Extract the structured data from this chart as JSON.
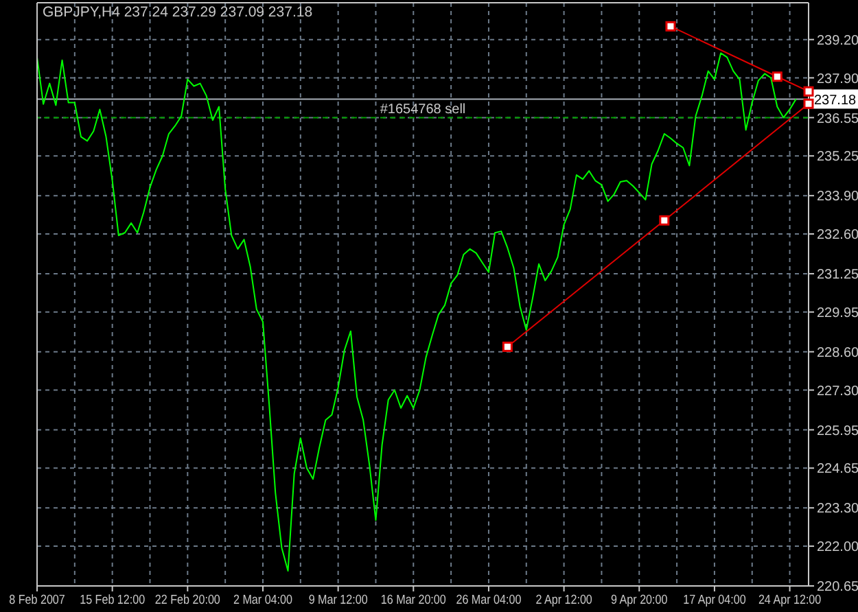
{
  "chart_data": {
    "type": "line",
    "title": "GBPJPY,H4 237.24 237.29 237.09 237.18",
    "categories": [
      "8 Feb 2007",
      null,
      null,
      null,
      null,
      null,
      null,
      null,
      null,
      null,
      null,
      null,
      "15 Feb 12:00",
      null,
      null,
      null,
      null,
      null,
      null,
      null,
      null,
      null,
      null,
      null,
      "22 Feb 20:00",
      null,
      null,
      null,
      null,
      null,
      null,
      null,
      null,
      null,
      null,
      null,
      "2 Mar 04:00",
      null,
      null,
      null,
      null,
      null,
      null,
      null,
      null,
      null,
      null,
      null,
      "9 Mar 12:00",
      null,
      null,
      null,
      null,
      null,
      null,
      null,
      null,
      null,
      null,
      null,
      "16 Mar 20:00",
      null,
      null,
      null,
      null,
      null,
      null,
      null,
      null,
      null,
      null,
      null,
      "26 Mar 04:00",
      null,
      null,
      null,
      null,
      null,
      null,
      null,
      null,
      null,
      null,
      null,
      "2 Apr 12:00",
      null,
      null,
      null,
      null,
      null,
      null,
      null,
      null,
      null,
      null,
      null,
      "9 Apr 20:00",
      null,
      null,
      null,
      null,
      null,
      null,
      null,
      null,
      null,
      null,
      null,
      "17 Apr 04:00",
      null,
      null,
      null,
      null,
      null,
      null,
      null,
      null,
      null,
      null,
      null,
      "24 Apr 12:00",
      null,
      null,
      null
    ],
    "series": [
      {
        "color": "#00ff00",
        "values": [
          238.6,
          237.01,
          237.71,
          236.97,
          238.5,
          237.06,
          237.06,
          235.9,
          235.76,
          236.09,
          236.83,
          235.9,
          234.41,
          232.55,
          232.64,
          232.97,
          232.64,
          233.34,
          234.18,
          234.78,
          235.25,
          236.0,
          236.27,
          236.6,
          237.85,
          237.62,
          237.71,
          237.29,
          236.46,
          236.92,
          234.13,
          232.55,
          232.09,
          232.41,
          231.48,
          230.04,
          229.62,
          226.83,
          223.81,
          221.95,
          221.16,
          224.46,
          225.67,
          224.65,
          224.28,
          225.35,
          226.28,
          226.46,
          227.39,
          228.65,
          229.3,
          227.07,
          226.28,
          224.74,
          222.88,
          225.44,
          226.97,
          227.3,
          226.69,
          227.11,
          226.69,
          227.3,
          228.41,
          229.16,
          229.86,
          230.18,
          230.92,
          231.2,
          231.9,
          232.09,
          231.95,
          231.62,
          231.3,
          232.64,
          232.69,
          232.13,
          231.44,
          230.13,
          229.34,
          230.41,
          231.58,
          231.02,
          231.34,
          231.81,
          232.92,
          233.44,
          234.6,
          234.46,
          234.74,
          234.41,
          234.27,
          233.71,
          233.95,
          234.37,
          234.41,
          234.23,
          234.0,
          233.76,
          234.97,
          235.43,
          236.0,
          235.85,
          235.67,
          235.53,
          234.92,
          236.6,
          237.29,
          238.13,
          237.85,
          238.74,
          238.6,
          238.13,
          237.85,
          236.13,
          237.06,
          237.81,
          238.04,
          237.9,
          236.92,
          236.55,
          236.83,
          237.18,
          null,
          null
        ]
      },
      {
        "type": "line",
        "color": "#e00000",
        "marker": "square",
        "values": [
          null,
          null,
          null,
          null,
          null,
          null,
          null,
          null,
          null,
          null,
          null,
          null,
          null,
          null,
          null,
          null,
          null,
          null,
          null,
          null,
          null,
          null,
          null,
          null,
          null,
          null,
          null,
          null,
          null,
          null,
          null,
          null,
          null,
          null,
          null,
          null,
          null,
          null,
          null,
          null,
          null,
          null,
          null,
          null,
          null,
          null,
          null,
          null,
          null,
          null,
          null,
          null,
          null,
          null,
          null,
          null,
          null,
          null,
          null,
          null,
          null,
          null,
          null,
          null,
          null,
          null,
          null,
          null,
          null,
          null,
          null,
          null,
          null,
          null,
          null,
          null,
          null,
          null,
          null,
          null,
          null,
          null,
          null,
          null,
          null,
          null,
          null,
          null,
          null,
          null,
          null,
          null,
          null,
          null,
          null,
          null,
          null,
          null,
          null,
          null,
          null,
          239.65,
          null,
          null,
          null,
          null,
          null,
          null,
          null,
          null,
          null,
          null,
          null,
          null,
          null,
          null,
          null,
          null,
          237.94,
          null,
          null,
          null,
          null,
          237.44
        ]
      },
      {
        "type": "line",
        "color": "#e00000",
        "marker": "square",
        "values": [
          null,
          null,
          null,
          null,
          null,
          null,
          null,
          null,
          null,
          null,
          null,
          null,
          null,
          null,
          null,
          null,
          null,
          null,
          null,
          null,
          null,
          null,
          null,
          null,
          null,
          null,
          null,
          null,
          null,
          null,
          null,
          null,
          null,
          null,
          null,
          null,
          null,
          null,
          null,
          null,
          null,
          null,
          null,
          null,
          null,
          null,
          null,
          null,
          null,
          null,
          null,
          null,
          null,
          null,
          null,
          null,
          null,
          null,
          null,
          null,
          null,
          null,
          null,
          null,
          null,
          null,
          null,
          null,
          null,
          null,
          null,
          null,
          null,
          null,
          null,
          228.77,
          null,
          null,
          null,
          null,
          null,
          null,
          null,
          null,
          null,
          null,
          null,
          null,
          null,
          null,
          null,
          null,
          null,
          null,
          null,
          null,
          null,
          null,
          null,
          null,
          233.06,
          null,
          null,
          null,
          null,
          null,
          null,
          null,
          null,
          null,
          null,
          null,
          null,
          null,
          null,
          null,
          null,
          null,
          null,
          null,
          null,
          null,
          null,
          237.02
        ]
      }
    ],
    "ylim": [
      220.65,
      240.45
    ],
    "yticks": [
      {
        "value": 239.2,
        "label": "239.20"
      },
      {
        "value": 237.9,
        "label": "237.90"
      },
      236.55,
      235.25,
      {
        "value": 233.9,
        "label": "233.90"
      },
      {
        "value": 232.6,
        "label": "232.60"
      },
      231.25,
      229.95,
      {
        "value": 228.6,
        "label": "228.60"
      },
      {
        "value": 227.3,
        "label": "227.30"
      },
      225.95,
      224.65,
      {
        "value": 223.3,
        "label": "223.30"
      },
      {
        "value": 222,
        "label": "222.00"
      },
      220.65
    ],
    "grid": true,
    "ref_lines": [
      {
        "axis": "y",
        "value": 237.18,
        "label": "237.18",
        "color": "#a8b0b8"
      },
      {
        "axis": "y",
        "value": 236.55,
        "label": "#1654768 sell",
        "color": "#00a000",
        "line_style": "dashed"
      }
    ]
  }
}
